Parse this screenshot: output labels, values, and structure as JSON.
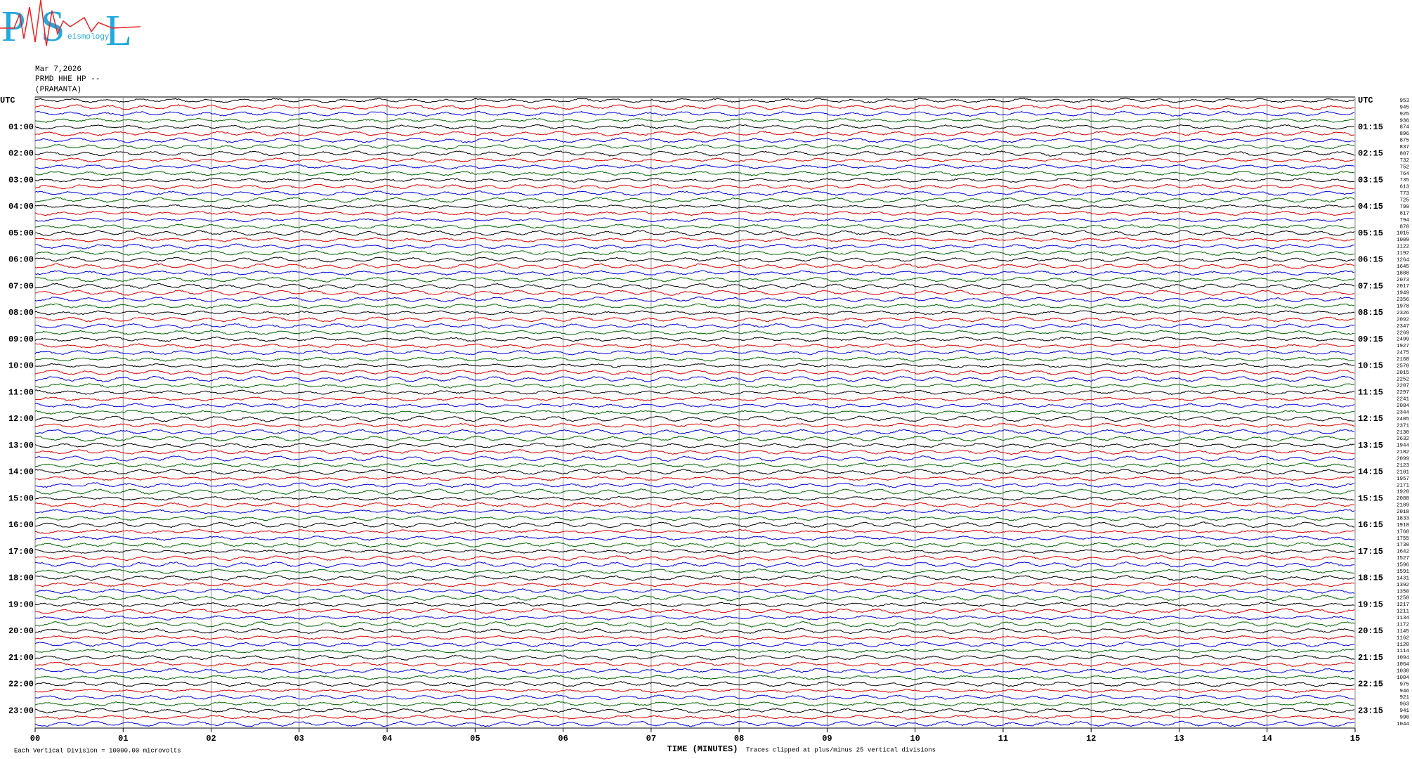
{
  "logo": {
    "letters": [
      "P",
      "S",
      "L"
    ],
    "subtitle": "eismology"
  },
  "header": {
    "date": "Mar 7,2026",
    "station": "PRMD HHE HP --",
    "location": "(PRAMANTA)"
  },
  "chart_data": {
    "type": "helicorder",
    "left_labels": [
      "UTC",
      "01:00",
      "02:00",
      "03:00",
      "04:00",
      "05:00",
      "06:00",
      "07:00",
      "08:00",
      "09:00",
      "10:00",
      "11:00",
      "12:00",
      "13:00",
      "14:00",
      "15:00",
      "16:00",
      "17:00",
      "18:00",
      "19:00",
      "20:00",
      "21:00",
      "22:00",
      "23:00"
    ],
    "right_labels": [
      "UTC",
      "01:15",
      "02:15",
      "03:15",
      "04:15",
      "05:15",
      "06:15",
      "07:15",
      "08:15",
      "09:15",
      "10:15",
      "11:15",
      "12:15",
      "13:15",
      "14:15",
      "15:15",
      "16:15",
      "17:15",
      "18:15",
      "19:15",
      "20:15",
      "21:15",
      "22:15",
      "23:15"
    ],
    "trace_counts": [
      953,
      945,
      925,
      936,
      874,
      896,
      875,
      837,
      807,
      732,
      752,
      764,
      735,
      613,
      773,
      725,
      799,
      817,
      794,
      870,
      1015,
      1009,
      1122,
      1192,
      1264,
      1645,
      1888,
      2073,
      2017,
      1949,
      2356,
      1978,
      2326,
      2092,
      2347,
      2269,
      2499,
      1927,
      2475,
      2168,
      2570,
      2015,
      2252,
      2207,
      2297,
      2241,
      2084,
      2344,
      2405,
      2371,
      2130,
      2632,
      1944,
      2182,
      2099,
      2123,
      2101,
      1957,
      2171,
      1920,
      2088,
      2189,
      2018,
      1833,
      1918,
      1760,
      1755,
      1730,
      1642,
      1527,
      1596,
      1591,
      1431,
      1392,
      1350,
      1258,
      1217,
      1211,
      1134,
      1172,
      1145,
      1162,
      1120,
      1114,
      1094,
      1064,
      1030,
      1004,
      975,
      946,
      921,
      963,
      941,
      990,
      1044
    ],
    "trace_colors": [
      "#000000",
      "#e00000",
      "#0000e0",
      "#006600"
    ],
    "x_label": "TIME (MINUTES)",
    "xlim": [
      0,
      15
    ],
    "xticks": [
      {
        "value": 0,
        "label": "00"
      },
      {
        "value": 1,
        "label": "01"
      },
      {
        "value": 2,
        "label": "02"
      },
      {
        "value": 3,
        "label": "03"
      },
      {
        "value": 4,
        "label": "04"
      },
      {
        "value": 5,
        "label": "05"
      },
      {
        "value": 6,
        "label": "06"
      },
      {
        "value": 7,
        "label": "07"
      },
      {
        "value": 8,
        "label": "08"
      },
      {
        "value": 9,
        "label": "09"
      },
      {
        "value": 10,
        "label": "10"
      },
      {
        "value": 11,
        "label": "11"
      },
      {
        "value": 12,
        "label": "12"
      },
      {
        "value": 13,
        "label": "13"
      },
      {
        "value": 14,
        "label": "14"
      },
      {
        "value": 15,
        "label": "15"
      }
    ],
    "grid": true,
    "footer_left": "Each Vertical Division = 10000.00 microvolts",
    "footer_right": "Traces clipped at plus/minus 25 vertical divisions"
  }
}
